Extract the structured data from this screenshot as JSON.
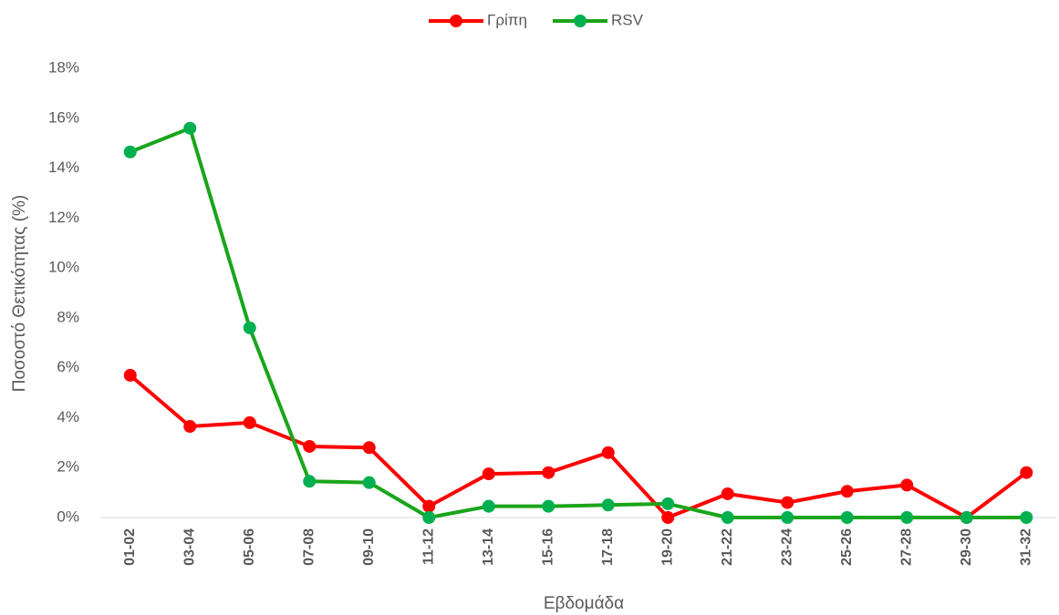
{
  "chart_data": {
    "type": "line",
    "y_label": "Ποσοστό Θετικότητας (%)",
    "x_label": "Εβδομάδα",
    "categories": [
      "01-02",
      "03-04",
      "05-06",
      "07-08",
      "09-10",
      "11-12",
      "13-14",
      "15-16",
      "17-18",
      "19-20",
      "21-22",
      "23-24",
      "25-26",
      "27-28",
      "29-30",
      "31-32"
    ],
    "series": [
      {
        "name": "Γρίπη",
        "color": "#ff0000",
        "values": [
          5.7,
          3.65,
          3.8,
          2.85,
          2.8,
          0.45,
          1.75,
          1.8,
          2.6,
          0,
          0.95,
          0.6,
          1.05,
          1.3,
          0,
          1.8
        ]
      },
      {
        "name": "RSV",
        "color": "#1aa51a",
        "values": [
          14.65,
          15.6,
          7.6,
          1.45,
          1.4,
          0,
          0.45,
          0.45,
          0.5,
          0.55,
          0,
          0,
          0,
          0,
          0,
          0
        ]
      }
    ],
    "ylim": [
      0,
      18
    ],
    "yticks": [
      {
        "value": 0,
        "label": "0%"
      },
      {
        "value": 2,
        "label": "2%"
      },
      {
        "value": 4,
        "label": "4%"
      },
      {
        "value": 6,
        "label": "6%"
      },
      {
        "value": 8,
        "label": "8%"
      },
      {
        "value": 10,
        "label": "10%"
      },
      {
        "value": 12,
        "label": "12%"
      },
      {
        "value": 14,
        "label": "14%"
      },
      {
        "value": 16,
        "label": "16%"
      },
      {
        "value": 18,
        "label": "18%"
      }
    ],
    "grid": false,
    "legend": "top",
    "marker_colors": [
      "#ff0000",
      "#00b050"
    ]
  }
}
